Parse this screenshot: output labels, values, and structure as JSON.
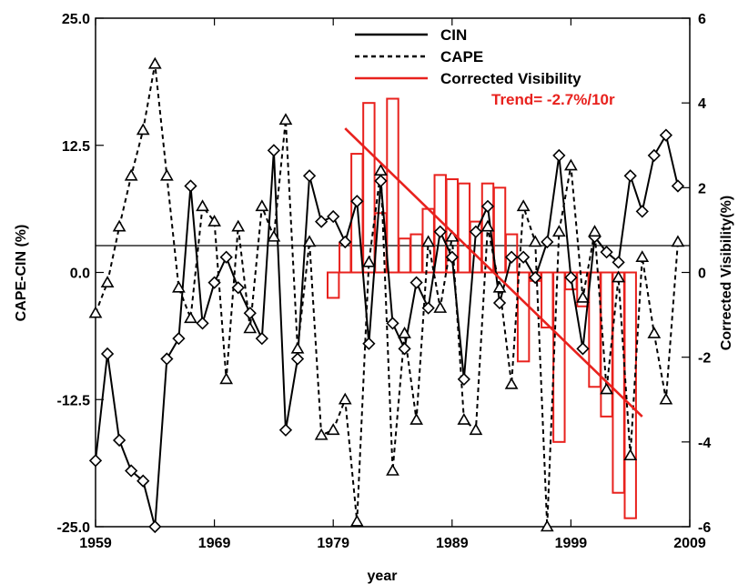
{
  "chart_data": {
    "type": "line",
    "xlabel": "year",
    "ylabel_left": "CAPE-CIN (%)",
    "ylabel_right": "Corrected Visibility(%)",
    "xlim": [
      1959,
      2009
    ],
    "ylim_left": [
      -25.0,
      25.0
    ],
    "ylim_right": [
      -6,
      6
    ],
    "x_ticks": [
      "1959",
      "1969",
      "1979",
      "1989",
      "1999",
      "2009"
    ],
    "y_left_ticks": [
      "25.0",
      "12.5",
      "0.0",
      "-12.5",
      "-25.0"
    ],
    "y_right_ticks": [
      "6",
      "4",
      "2",
      "0",
      "-2",
      "-4",
      "-6"
    ],
    "legend_position": "top-right",
    "colors": {
      "cin": "#000000",
      "cape": "#000000",
      "visibility": "#e8211d"
    },
    "series": [
      {
        "name": "CIN",
        "style": "solid",
        "marker": "diamond",
        "axis": "left",
        "x": [
          1959,
          1960,
          1961,
          1962,
          1963,
          1964,
          1965,
          1966,
          1967,
          1968,
          1969,
          1970,
          1971,
          1972,
          1973,
          1974,
          1975,
          1976,
          1977,
          1978,
          1979,
          1980,
          1981,
          1982,
          1983,
          1984,
          1985,
          1986,
          1987,
          1988,
          1989,
          1990,
          1991,
          1992,
          1993,
          1994,
          1995,
          1996,
          1997,
          1998,
          1999,
          2000,
          2001,
          2002,
          2003,
          2004,
          2005,
          2006,
          2007,
          2008
        ],
        "values": [
          -18.5,
          -8.0,
          -16.5,
          -19.5,
          -20.5,
          -25.0,
          -8.5,
          -6.5,
          8.5,
          -5.0,
          -1.0,
          1.5,
          -1.5,
          -4.0,
          -6.5,
          12.0,
          -15.5,
          -8.5,
          9.5,
          5.0,
          5.5,
          3.0,
          7.0,
          -7.0,
          9.0,
          -5.0,
          -7.5,
          -1.0,
          -3.5,
          4.0,
          1.5,
          -10.5,
          4.0,
          6.5,
          -3.0,
          1.5,
          1.5,
          -0.5,
          3.0,
          11.5,
          -0.5,
          -7.5,
          3.5,
          2.0,
          1.0,
          9.5,
          6.0,
          11.5,
          13.5,
          8.5
        ]
      },
      {
        "name": "CAPE",
        "style": "dashed",
        "marker": "triangle",
        "axis": "left",
        "x": [
          1959,
          1960,
          1961,
          1962,
          1963,
          1964,
          1965,
          1966,
          1967,
          1968,
          1969,
          1970,
          1971,
          1972,
          1973,
          1974,
          1975,
          1976,
          1977,
          1978,
          1979,
          1980,
          1981,
          1982,
          1983,
          1984,
          1985,
          1986,
          1987,
          1988,
          1989,
          1990,
          1991,
          1992,
          1993,
          1994,
          1995,
          1996,
          1997,
          1998,
          1999,
          2000,
          2001,
          2002,
          2003,
          2004,
          2005,
          2006,
          2007,
          2008
        ],
        "values": [
          -4.0,
          -1.0,
          4.5,
          9.5,
          14.0,
          20.5,
          9.5,
          -1.5,
          -4.5,
          6.5,
          5.0,
          -10.5,
          4.5,
          -5.5,
          6.5,
          3.5,
          15.0,
          -7.5,
          3.0,
          -16.0,
          -15.5,
          -12.5,
          -24.5,
          1.0,
          10.0,
          -19.5,
          -6.0,
          -14.5,
          3.0,
          -3.5,
          3.5,
          -14.5,
          -15.5,
          4.5,
          -1.5,
          -11.0,
          6.5,
          3.0,
          -27.5,
          4.0,
          10.5,
          -2.5,
          4.0,
          -11.5,
          -0.5,
          -18.0,
          1.5,
          -6.0,
          -12.5,
          3.0
        ]
      }
    ],
    "bars": {
      "name": "Corrected Visibility",
      "axis": "right",
      "x": [
        1979,
        1980,
        1981,
        1982,
        1983,
        1984,
        1985,
        1986,
        1987,
        1988,
        1989,
        1990,
        1991,
        1992,
        1993,
        1994,
        1995,
        1996,
        1997,
        1998,
        1999,
        2000,
        2001,
        2002,
        2003,
        2004
      ],
      "values": [
        -0.6,
        0.7,
        2.8,
        4.0,
        1.4,
        4.1,
        0.8,
        0.9,
        1.5,
        2.3,
        2.2,
        2.1,
        1.2,
        2.1,
        2.0,
        0.9,
        -2.1,
        -0.2,
        -1.3,
        -4.0,
        -0.4,
        -0.8,
        -2.7,
        -3.4,
        -5.2,
        -5.8
      ]
    },
    "trend": {
      "label": "Trend=  -2.7%/10r",
      "x": [
        1980,
        2005
      ],
      "values": [
        3.4,
        -3.4
      ]
    }
  }
}
